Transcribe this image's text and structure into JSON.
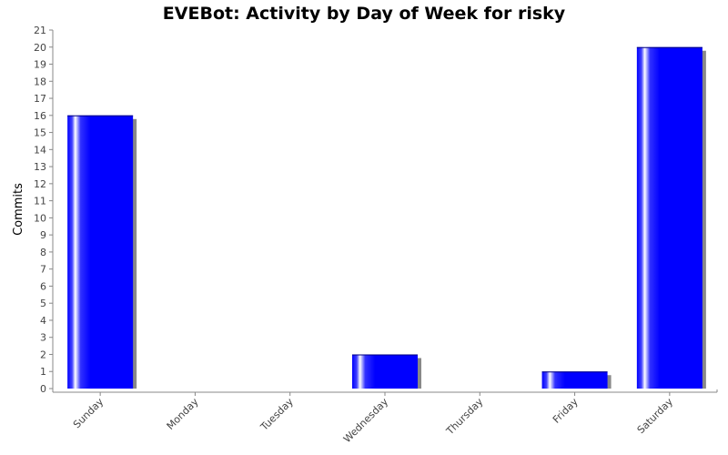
{
  "chart_data": {
    "type": "bar",
    "title": "EVEBot: Activity by Day of Week for risky",
    "xlabel": "",
    "ylabel": "Commits",
    "categories": [
      "Sunday",
      "Monday",
      "Tuesday",
      "Wednesday",
      "Thursday",
      "Friday",
      "Saturday"
    ],
    "values": [
      16,
      0,
      0,
      2,
      0,
      1,
      20
    ],
    "ylim": [
      0,
      21
    ],
    "yticks": [
      0,
      1,
      2,
      3,
      4,
      5,
      6,
      7,
      8,
      9,
      10,
      11,
      12,
      13,
      14,
      15,
      16,
      17,
      18,
      19,
      20,
      21
    ],
    "grid": false,
    "legend": "none",
    "colors": {
      "bar": "#0000ff",
      "shadow": "#888888",
      "axis": "#888888"
    }
  }
}
